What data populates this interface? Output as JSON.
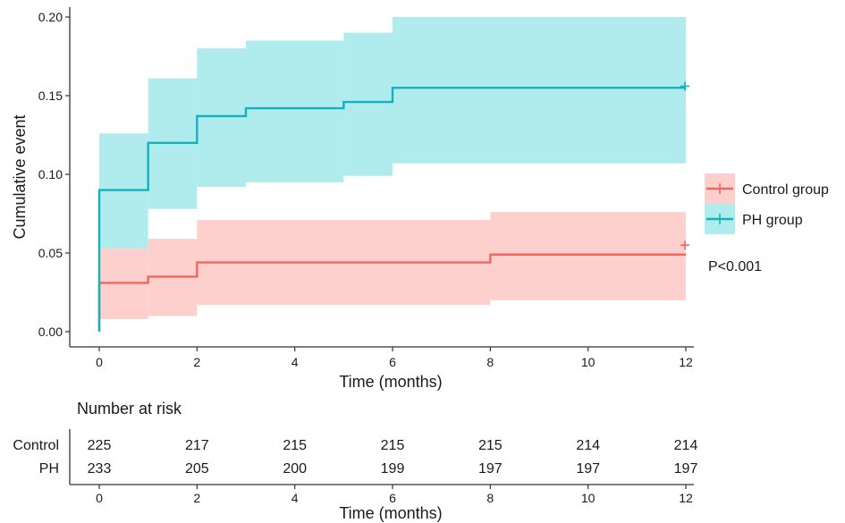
{
  "chart_data": {
    "type": "line",
    "ylabel": "Cumulative event",
    "xlabel": "Time (months)",
    "xlim": [
      0,
      12
    ],
    "ylim": [
      0,
      0.2
    ],
    "x_ticks": [
      0,
      2,
      4,
      6,
      8,
      10,
      12
    ],
    "x_tick_labels": [
      "0",
      "2",
      "4",
      "6",
      "8",
      "10",
      "12"
    ],
    "y_ticks": [
      0,
      0.05,
      0.1,
      0.15,
      0.2
    ],
    "y_tick_labels": [
      "0.00",
      "0.05",
      "0.10",
      "0.15",
      "0.20"
    ],
    "annotation": "P<0.001",
    "legend_position": "right",
    "series": [
      {
        "name": "Control group",
        "color": "#f0675f",
        "fill": "#fdd0cd",
        "steps": [
          {
            "t": 0,
            "y": 0.031,
            "lo": 0.008,
            "hi": 0.053
          },
          {
            "t": 1,
            "y": 0.035,
            "lo": 0.01,
            "hi": 0.059
          },
          {
            "t": 2,
            "y": 0.044,
            "lo": 0.017,
            "hi": 0.071
          },
          {
            "t": 8,
            "y": 0.049,
            "lo": 0.02,
            "hi": 0.076
          }
        ],
        "end": 12,
        "censor_y": 0.055
      },
      {
        "name": "PH group",
        "color": "#13b2bd",
        "fill": "#b0ebee",
        "steps": [
          {
            "t": 0,
            "y": 0.09,
            "lo": 0.053,
            "hi": 0.126
          },
          {
            "t": 1,
            "y": 0.12,
            "lo": 0.078,
            "hi": 0.161
          },
          {
            "t": 2,
            "y": 0.137,
            "lo": 0.092,
            "hi": 0.18
          },
          {
            "t": 3,
            "y": 0.142,
            "lo": 0.095,
            "hi": 0.185
          },
          {
            "t": 5,
            "y": 0.146,
            "lo": 0.099,
            "hi": 0.19
          },
          {
            "t": 6,
            "y": 0.155,
            "lo": 0.107,
            "hi": 0.2
          }
        ],
        "end": 12,
        "censor_y": 0.156
      }
    ]
  },
  "risk_table": {
    "title": "Number at risk",
    "xlabel": "Time (months)",
    "times": [
      0,
      2,
      4,
      6,
      8,
      10,
      12
    ],
    "time_labels": [
      "0",
      "2",
      "4",
      "6",
      "8",
      "10",
      "12"
    ],
    "rows": [
      {
        "label": "Control",
        "values": [
          "225",
          "217",
          "215",
          "215",
          "215",
          "214",
          "214"
        ]
      },
      {
        "label": "PH",
        "values": [
          "233",
          "205",
          "200",
          "199",
          "197",
          "197",
          "197"
        ]
      }
    ]
  }
}
